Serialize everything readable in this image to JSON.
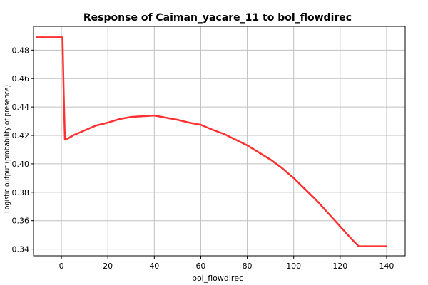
{
  "chart_data": {
    "type": "line",
    "title": "Response of Caiman_yacare_11 to bol_flowdirec",
    "xlabel": "bol_flowdirec",
    "ylabel": "Logistic output (probability of presence)",
    "xlim": [
      -12,
      148
    ],
    "ylim": [
      0.3353,
      0.4967
    ],
    "xticks": [
      0,
      20,
      40,
      60,
      80,
      100,
      120,
      140
    ],
    "yticks": [
      0.34,
      0.36,
      0.38,
      0.4,
      0.42,
      0.44,
      0.46,
      0.48
    ],
    "ytick_labels": [
      "0.34",
      "0.36",
      "0.38",
      "0.40",
      "0.42",
      "0.44",
      "0.46",
      "0.48"
    ],
    "grid": true,
    "line_color": "#ff3030",
    "series": [
      {
        "x": [
          -11,
          0.5,
          1,
          1.5,
          3,
          5,
          10,
          15,
          20,
          25,
          30,
          35,
          40,
          45,
          50,
          55,
          60,
          65,
          70,
          75,
          80,
          85,
          90,
          95,
          100,
          105,
          110,
          115,
          120,
          125,
          128,
          133,
          140
        ],
        "y": [
          0.489,
          0.489,
          0.45,
          0.417,
          0.418,
          0.42,
          0.4235,
          0.427,
          0.429,
          0.4315,
          0.433,
          0.4335,
          0.434,
          0.4325,
          0.431,
          0.429,
          0.4275,
          0.424,
          0.421,
          0.417,
          0.413,
          0.408,
          0.403,
          0.397,
          0.39,
          0.382,
          0.374,
          0.365,
          0.356,
          0.347,
          0.342,
          0.342,
          0.342
        ]
      }
    ]
  }
}
